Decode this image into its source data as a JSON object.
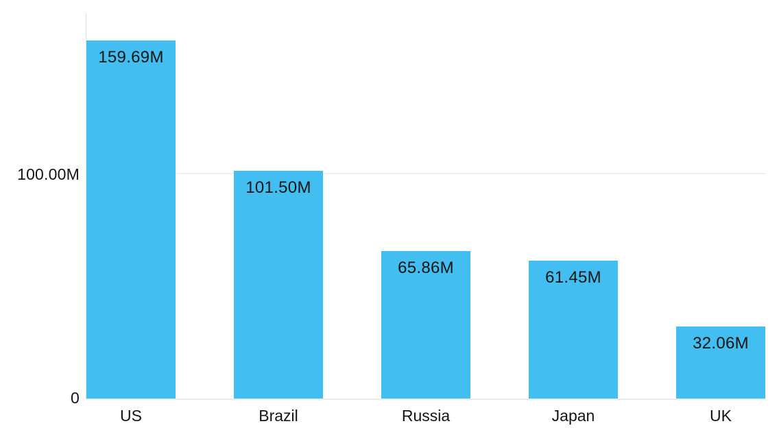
{
  "chart_data": {
    "type": "bar",
    "title": "",
    "xlabel": "",
    "ylabel": "",
    "categories": [
      "US",
      "Brazil",
      "Russia",
      "Japan",
      "UK"
    ],
    "values": [
      159.69,
      101.5,
      65.86,
      61.45,
      32.06
    ],
    "value_labels": [
      "159.69M",
      "101.50M",
      "65.86M",
      "61.45M",
      "32.06M"
    ],
    "unit": "millions",
    "ylim": [
      0,
      172
    ],
    "yticks": [
      {
        "label": "100.00M",
        "value": 100
      },
      {
        "label": "0",
        "value": 0
      }
    ],
    "grid": "single horizontal gridline at 100M",
    "legend": "none",
    "colors": {
      "bar": "#42bef0",
      "text": "#141414",
      "gridline": "#f0f0f0",
      "axis": "#e3e3e3",
      "background": "#ffffff"
    }
  }
}
